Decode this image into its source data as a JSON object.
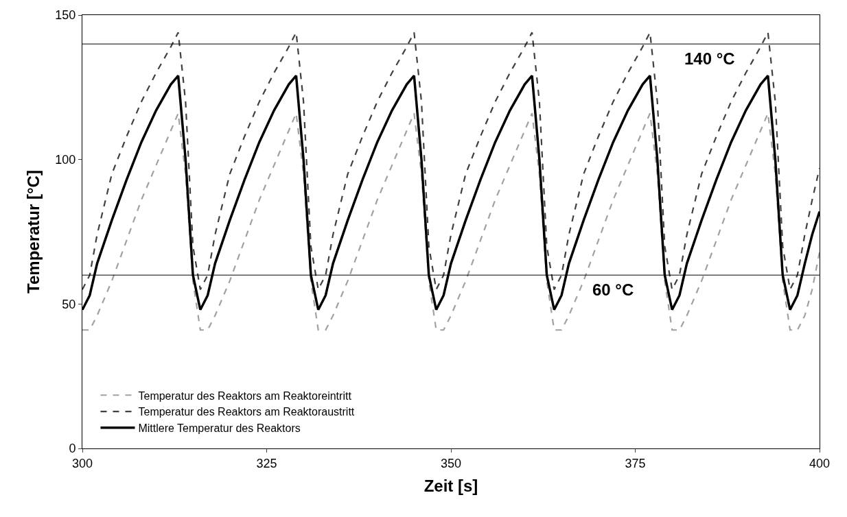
{
  "chart_data": {
    "type": "line",
    "xlabel": "Zeit [s]",
    "ylabel": "Temperatur [°C]",
    "x": [
      300,
      301,
      302,
      304,
      306,
      308,
      310,
      312,
      313,
      314,
      315,
      316,
      317,
      318,
      320,
      322,
      324,
      326,
      328,
      329,
      330,
      331,
      332,
      333,
      334,
      336,
      338,
      340,
      342,
      344,
      345,
      346,
      347,
      348,
      349,
      350,
      352,
      354,
      356,
      358,
      360,
      361,
      362,
      363,
      364,
      365,
      366,
      368,
      370,
      372,
      374,
      376,
      377,
      378,
      379,
      380,
      381,
      382,
      384,
      386,
      388,
      390,
      392,
      393,
      394,
      395,
      396,
      397,
      398,
      399,
      400
    ],
    "series": [
      {
        "name": "Temperatur des Reaktors am Reaktoreintritt",
        "color": "#a0a0a0",
        "line_style": "dashed",
        "values": [
          41,
          41,
          46,
          58,
          72,
          86,
          98,
          110,
          116,
          95,
          58,
          41,
          41,
          46,
          58,
          72,
          86,
          98,
          110,
          116,
          95,
          58,
          41,
          41,
          46,
          58,
          72,
          86,
          98,
          110,
          116,
          95,
          58,
          41,
          41,
          46,
          58,
          72,
          86,
          98,
          110,
          116,
          95,
          58,
          41,
          41,
          46,
          58,
          72,
          86,
          98,
          110,
          116,
          95,
          58,
          41,
          41,
          46,
          58,
          72,
          86,
          98,
          110,
          116,
          95,
          58,
          41,
          41,
          46,
          55,
          68
        ]
      },
      {
        "name": "Temperatur des Reaktors am Reaktoraustritt",
        "color": "#404040",
        "line_style": "dashed",
        "values": [
          55,
          60,
          74,
          95,
          108,
          120,
          130,
          139,
          144,
          120,
          70,
          55,
          60,
          74,
          95,
          108,
          120,
          130,
          139,
          144,
          120,
          70,
          55,
          60,
          74,
          95,
          108,
          120,
          130,
          139,
          144,
          120,
          70,
          55,
          60,
          74,
          95,
          108,
          120,
          130,
          139,
          144,
          120,
          70,
          55,
          60,
          74,
          95,
          108,
          120,
          130,
          139,
          144,
          120,
          70,
          55,
          60,
          74,
          95,
          108,
          120,
          130,
          139,
          144,
          120,
          70,
          55,
          60,
          74,
          86,
          97
        ]
      },
      {
        "name": "Mittlere Temperatur des Reaktors",
        "color": "#000000",
        "line_style": "solid",
        "values": [
          48,
          53,
          64,
          79,
          93,
          106,
          117,
          126,
          129,
          100,
          60,
          48,
          53,
          64,
          79,
          93,
          106,
          117,
          126,
          129,
          100,
          60,
          48,
          53,
          64,
          79,
          93,
          106,
          117,
          126,
          129,
          100,
          60,
          48,
          53,
          64,
          79,
          93,
          106,
          117,
          126,
          129,
          100,
          60,
          48,
          53,
          64,
          79,
          93,
          106,
          117,
          126,
          129,
          100,
          60,
          48,
          53,
          64,
          79,
          93,
          106,
          117,
          126,
          129,
          100,
          60,
          48,
          53,
          64,
          74,
          82
        ]
      }
    ],
    "xlim": [
      300,
      400
    ],
    "xticks": [
      300,
      325,
      350,
      375,
      400
    ],
    "ylim": [
      0,
      150
    ],
    "yticks": [
      0,
      50,
      100,
      150
    ],
    "ref_lines": [
      {
        "axis": "y",
        "value": 140,
        "label": "140 °C",
        "color": "#000000"
      },
      {
        "axis": "y",
        "value": 60,
        "label": "60 °C",
        "color": "#000000"
      }
    ],
    "legend": "bottom left",
    "marker": "none"
  }
}
